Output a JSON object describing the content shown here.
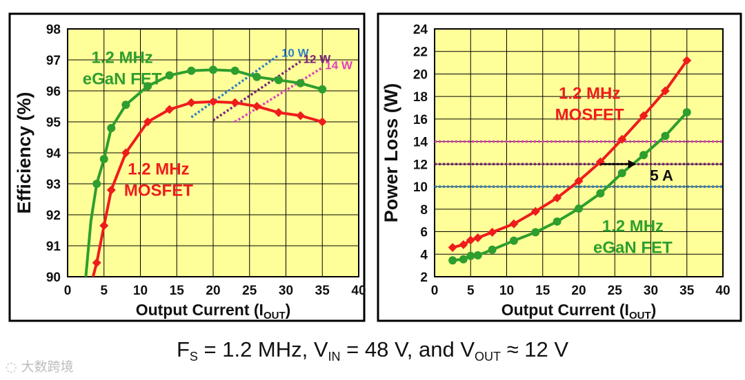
{
  "chart_data": [
    {
      "type": "line",
      "panel": "left",
      "xlabel": "Output Current (I",
      "xlabel_sub": "OUT",
      "xlabel_close": ")",
      "ylabel": "Efficiency (%)",
      "xlim": [
        0,
        40
      ],
      "ylim": [
        90,
        98
      ],
      "xticks": [
        0,
        5,
        10,
        15,
        20,
        25,
        30,
        35,
        40
      ],
      "yticks": [
        90,
        91,
        92,
        93,
        94,
        95,
        96,
        97,
        98
      ],
      "grid": true,
      "series": [
        {
          "name": "1.2 MHz eGaN FET",
          "color": "#2e9e2e",
          "marker": "circle",
          "line_x": [
            2.5,
            3.2,
            4,
            5,
            6,
            8,
            11,
            14,
            17,
            20,
            23,
            26,
            29,
            32,
            35
          ],
          "line_y": [
            90.0,
            91.8,
            93.0,
            93.8,
            94.8,
            95.55,
            96.15,
            96.5,
            96.65,
            96.68,
            96.65,
            96.45,
            96.35,
            96.25,
            96.05
          ],
          "x": [
            4,
            5,
            6,
            8,
            11,
            14,
            17,
            20,
            23,
            26,
            29,
            32,
            35
          ],
          "y": [
            93.0,
            93.8,
            94.8,
            95.55,
            96.15,
            96.5,
            96.65,
            96.68,
            96.65,
            96.45,
            96.35,
            96.25,
            96.05
          ]
        },
        {
          "name": "1.2 MHz MOSFET",
          "color": "#ee1c1c",
          "marker": "diamond",
          "line_x": [
            3.5,
            4,
            5,
            6,
            8,
            11,
            14,
            17,
            20,
            23,
            26,
            29,
            32,
            35
          ],
          "line_y": [
            90.0,
            90.45,
            91.65,
            92.8,
            94.0,
            95.0,
            95.4,
            95.62,
            95.65,
            95.62,
            95.5,
            95.3,
            95.2,
            95.0
          ],
          "x": [
            4,
            5,
            6,
            8,
            11,
            14,
            17,
            20,
            23,
            26,
            29,
            32,
            35
          ],
          "y": [
            90.45,
            91.65,
            92.8,
            94.0,
            95.0,
            95.4,
            95.62,
            95.65,
            95.62,
            95.5,
            95.3,
            95.2,
            95.0
          ]
        }
      ],
      "iso_loss_lines": [
        {
          "label": "10 W",
          "color": "#2e7fc4",
          "x": [
            17,
            29
          ],
          "y": [
            95.15,
            97.15
          ]
        },
        {
          "label": "12 W",
          "color": "#7a1f7a",
          "x": [
            20,
            32
          ],
          "y": [
            95.05,
            96.95
          ]
        },
        {
          "label": "14 W",
          "color": "#e040c0",
          "x": [
            23,
            35
          ],
          "y": [
            95.0,
            96.75
          ]
        }
      ],
      "annotations": [
        {
          "line1": "1.2 MHz",
          "line2": "eGaN FET",
          "color": "#2e9e2e",
          "x": 7.5,
          "y": 96.9
        },
        {
          "line1": "1.2 MHz",
          "line2": "MOSFET",
          "color": "#ee1c1c",
          "x": 12.5,
          "y": 93.3
        }
      ]
    },
    {
      "type": "line",
      "panel": "right",
      "xlabel": "Output Current (I",
      "xlabel_sub": "OUT",
      "xlabel_close": ")",
      "ylabel": "Power Loss (W)",
      "xlim": [
        0,
        40
      ],
      "ylim": [
        2,
        24
      ],
      "xticks": [
        0,
        5,
        10,
        15,
        20,
        25,
        30,
        35,
        40
      ],
      "yticks": [
        2,
        4,
        6,
        8,
        10,
        12,
        14,
        16,
        18,
        20,
        22,
        24
      ],
      "grid": true,
      "series": [
        {
          "name": "1.2 MHz MOSFET",
          "color": "#ee1c1c",
          "marker": "diamond",
          "x": [
            2.5,
            4,
            5,
            6,
            8,
            11,
            14,
            17,
            20,
            23,
            26,
            29,
            32,
            35
          ],
          "y": [
            4.6,
            4.85,
            5.25,
            5.45,
            5.95,
            6.7,
            7.8,
            9.0,
            10.5,
            12.2,
            14.2,
            16.3,
            18.5,
            21.2
          ]
        },
        {
          "name": "1.2 MHz eGaN FET",
          "color": "#2e9e2e",
          "marker": "circle",
          "x": [
            2.5,
            4,
            5,
            6,
            8,
            11,
            14,
            17,
            20,
            23,
            26,
            29,
            32,
            35
          ],
          "y": [
            3.45,
            3.55,
            3.85,
            3.9,
            4.4,
            5.2,
            5.95,
            6.9,
            8.05,
            9.4,
            11.2,
            12.8,
            14.5,
            16.6
          ]
        }
      ],
      "reference_lines": [
        {
          "label": "10 W",
          "value": 10,
          "color": "#2e7fc4"
        },
        {
          "label": "12 W",
          "value": 12,
          "color": "#7a1f7a"
        },
        {
          "label": "14 W",
          "value": 14,
          "color": "#e040c0"
        }
      ],
      "arrow": {
        "from_x": 23,
        "to_x": 28,
        "y": 12,
        "label": "5 A",
        "label_x": 31.5,
        "label_y": 11.0
      },
      "annotations": [
        {
          "line1": "1.2 MHz",
          "line2": "MOSFET",
          "color": "#ee1c1c",
          "x": 21.5,
          "y": 17.8
        },
        {
          "line1": "1.2 MHz",
          "line2": "eGaN FET",
          "color": "#2e9e2e",
          "x": 27.5,
          "y": 6.0
        }
      ]
    }
  ],
  "caption": {
    "f": "F",
    "f_sub": "S",
    "f_val": " = 1.2 MHz, V",
    "vin_sub": "IN",
    "vin_val": " = 48 V, and V",
    "vout_sub": "OUT",
    "vout_val": " ≈ 12 V"
  },
  "watermark": "大数跨境"
}
